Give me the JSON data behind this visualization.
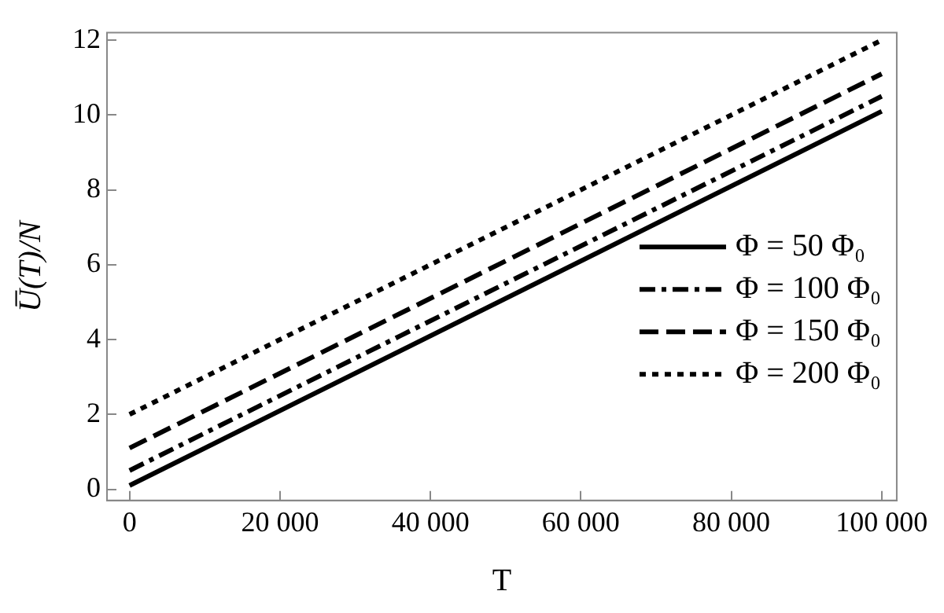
{
  "chart_data": {
    "type": "line",
    "xlabel": "T",
    "ylabel": "U̅(T)/N",
    "x": [
      0,
      100000
    ],
    "series": [
      {
        "name": "Φ = 50 Φ₀",
        "color": "#000000",
        "line_style": "solid",
        "values": [
          0.1,
          10.1
        ]
      },
      {
        "name": "Φ = 100 Φ₀",
        "color": "#000000",
        "line_style": "dashdot",
        "values": [
          0.5,
          10.5
        ]
      },
      {
        "name": "Φ = 150 Φ₀",
        "color": "#000000",
        "line_style": "dashed",
        "values": [
          1.1,
          11.1
        ]
      },
      {
        "name": "Φ = 200 Φ₀",
        "color": "#000000",
        "line_style": "dotted",
        "values": [
          2.0,
          12.0
        ]
      }
    ],
    "xlim": [
      -3000,
      102000
    ],
    "ylim": [
      -0.3,
      12.2
    ],
    "xticks": [
      0,
      {
        "value": 20000,
        "label": "20 000"
      },
      {
        "value": 40000,
        "label": "40 000"
      },
      {
        "value": 60000,
        "label": "60 000"
      },
      {
        "value": 80000,
        "label": "80 000"
      },
      {
        "value": 100000,
        "label": "100 000"
      }
    ],
    "yticks": [
      0,
      2,
      4,
      6,
      8,
      10,
      12
    ],
    "grid": false,
    "legend": "center right",
    "marker": "none"
  }
}
